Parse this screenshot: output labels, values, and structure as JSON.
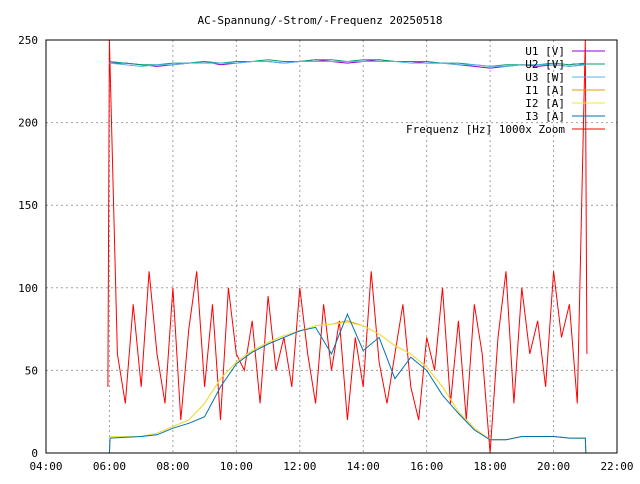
{
  "chart_data": {
    "type": "line",
    "title": "AC-Spannung/-Strom/-Frequenz 20250518",
    "xlabel": "",
    "ylabel": "",
    "xlim": [
      4,
      22
    ],
    "ylim": [
      0,
      250
    ],
    "grid": true,
    "legend_position": "top-right",
    "x_ticks": [
      "04:00",
      "06:00",
      "08:00",
      "10:00",
      "12:00",
      "14:00",
      "16:00",
      "18:00",
      "20:00",
      "22:00"
    ],
    "y_ticks": [
      "0",
      "50",
      "100",
      "150",
      "200",
      "250"
    ],
    "x_hours_voltage": [
      6,
      6.5,
      7,
      7.5,
      8,
      8.5,
      9,
      9.5,
      10,
      10.5,
      11,
      11.5,
      12,
      12.5,
      13,
      13.5,
      14,
      14.5,
      15,
      15.5,
      16,
      16.5,
      17,
      17.5,
      18,
      18.5,
      19,
      19.5,
      20,
      20.5,
      21
    ],
    "x_hours_current": [
      6,
      6.02,
      7,
      7.5,
      8,
      8.5,
      9,
      9.5,
      10,
      10.5,
      11,
      11.5,
      12,
      12.5,
      13,
      13.5,
      14,
      14.5,
      15,
      15.5,
      16,
      16.5,
      17,
      17.5,
      18,
      18.5,
      19,
      19.5,
      20,
      20.5,
      21,
      21.02
    ],
    "series": [
      {
        "name": "U1 [V]",
        "color": "#9400d3",
        "axis": "voltage",
        "values": [
          236,
          236,
          235,
          234,
          235,
          236,
          237,
          235,
          236,
          237,
          237,
          236,
          237,
          238,
          237,
          236,
          237,
          238,
          237,
          237,
          236,
          236,
          235,
          234,
          233,
          234,
          235,
          234,
          235,
          234,
          235
        ]
      },
      {
        "name": "U2 [V]",
        "color": "#009e73",
        "axis": "voltage",
        "values": [
          237,
          236,
          235,
          235,
          236,
          236,
          237,
          236,
          237,
          237,
          238,
          237,
          237,
          238,
          238,
          237,
          238,
          238,
          237,
          237,
          237,
          236,
          236,
          235,
          234,
          235,
          235,
          235,
          236,
          235,
          236
        ]
      },
      {
        "name": "U3 [W]",
        "color": "#56b4e9",
        "axis": "voltage",
        "values": [
          236,
          235,
          234,
          235,
          235,
          236,
          236,
          236,
          236,
          237,
          237,
          236,
          237,
          237,
          237,
          237,
          237,
          237,
          237,
          236,
          236,
          236,
          235,
          235,
          234,
          234,
          235,
          235,
          235,
          234,
          235
        ]
      },
      {
        "name": "I1 [A]",
        "color": "#e69f00",
        "axis": "current",
        "values": [
          0,
          10,
          10,
          12,
          16,
          20,
          30,
          45,
          55,
          62,
          67,
          71,
          74,
          77,
          78,
          80,
          77,
          72,
          65,
          60,
          52,
          40,
          25,
          15,
          8,
          8,
          10,
          10,
          10,
          9,
          9,
          0
        ]
      },
      {
        "name": "I2 [A]",
        "color": "#f0e442",
        "axis": "current",
        "values": [
          0,
          10,
          10,
          12,
          16,
          20,
          30,
          45,
          55,
          62,
          67,
          71,
          74,
          77,
          78,
          79,
          77,
          72,
          65,
          60,
          52,
          40,
          25,
          15,
          8,
          8,
          10,
          10,
          10,
          9,
          9,
          0
        ]
      },
      {
        "name": "I3 [A]",
        "color": "#0072b2",
        "axis": "current",
        "values": [
          0,
          9,
          10,
          11,
          15,
          18,
          22,
          40,
          54,
          61,
          66,
          70,
          74,
          76,
          60,
          84,
          62,
          70,
          45,
          58,
          50,
          35,
          24,
          14,
          8,
          8,
          10,
          10,
          10,
          9,
          9,
          0
        ]
      },
      {
        "name": "Frequenz [Hz] 1000x Zoom",
        "color": "#ff0000",
        "axis": "frequency",
        "x_hours": [
          5.95,
          6.0,
          6.25,
          6.5,
          6.75,
          7.0,
          7.25,
          7.5,
          7.75,
          8.0,
          8.25,
          8.5,
          8.75,
          9.0,
          9.25,
          9.5,
          9.75,
          10.0,
          10.25,
          10.5,
          10.75,
          11.0,
          11.25,
          11.5,
          11.75,
          12.0,
          12.25,
          12.5,
          12.75,
          13.0,
          13.25,
          13.5,
          13.75,
          14.0,
          14.25,
          14.5,
          14.75,
          15.0,
          15.25,
          15.5,
          15.75,
          16.0,
          16.25,
          16.5,
          16.75,
          17.0,
          17.25,
          17.5,
          17.75,
          18.0,
          18.25,
          18.5,
          18.75,
          19.0,
          19.25,
          19.5,
          19.75,
          20.0,
          20.25,
          20.5,
          20.75,
          21.0,
          21.05
        ],
        "values": [
          40,
          250,
          60,
          30,
          90,
          40,
          110,
          60,
          30,
          100,
          20,
          75,
          110,
          40,
          90,
          20,
          100,
          60,
          50,
          80,
          30,
          95,
          50,
          70,
          40,
          100,
          60,
          30,
          90,
          50,
          80,
          20,
          70,
          40,
          110,
          55,
          30,
          60,
          90,
          40,
          20,
          70,
          50,
          100,
          30,
          80,
          20,
          90,
          60,
          0,
          70,
          110,
          30,
          100,
          60,
          80,
          40,
          110,
          70,
          90,
          30,
          250,
          60
        ]
      }
    ]
  }
}
